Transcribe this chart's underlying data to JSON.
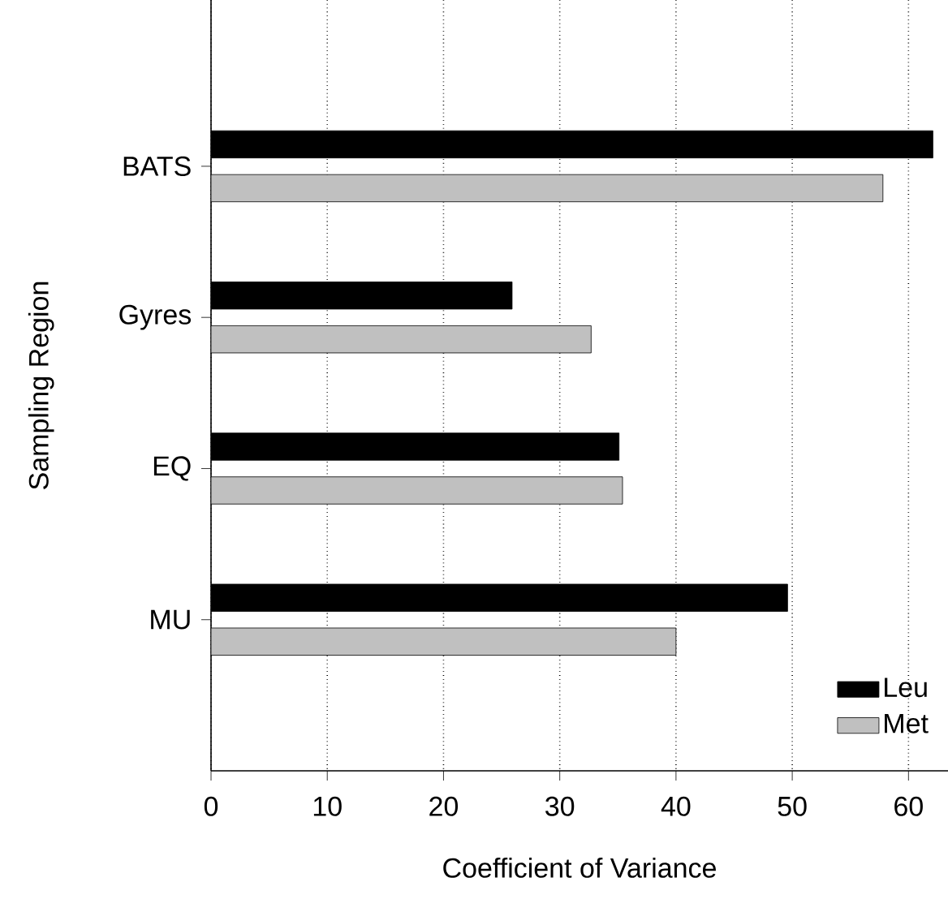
{
  "chart_data": {
    "type": "bar",
    "orientation": "horizontal",
    "xlabel": "Coefficient of Variance",
    "ylabel": "Sampling Region",
    "categories": [
      "BATS",
      "Gyres",
      "EQ",
      "MU"
    ],
    "series": [
      {
        "name": "Leu",
        "color": "#000000",
        "values": [
          62.1,
          25.9,
          35.1,
          49.6
        ]
      },
      {
        "name": "Met",
        "color": "#c0c0c0",
        "values": [
          57.8,
          32.7,
          35.4,
          40.0
        ]
      }
    ],
    "xlim": [
      0,
      63.4
    ],
    "xticks": [
      0,
      10,
      20,
      30,
      40,
      50,
      60
    ],
    "grid": "x",
    "legend": "bottom right"
  }
}
